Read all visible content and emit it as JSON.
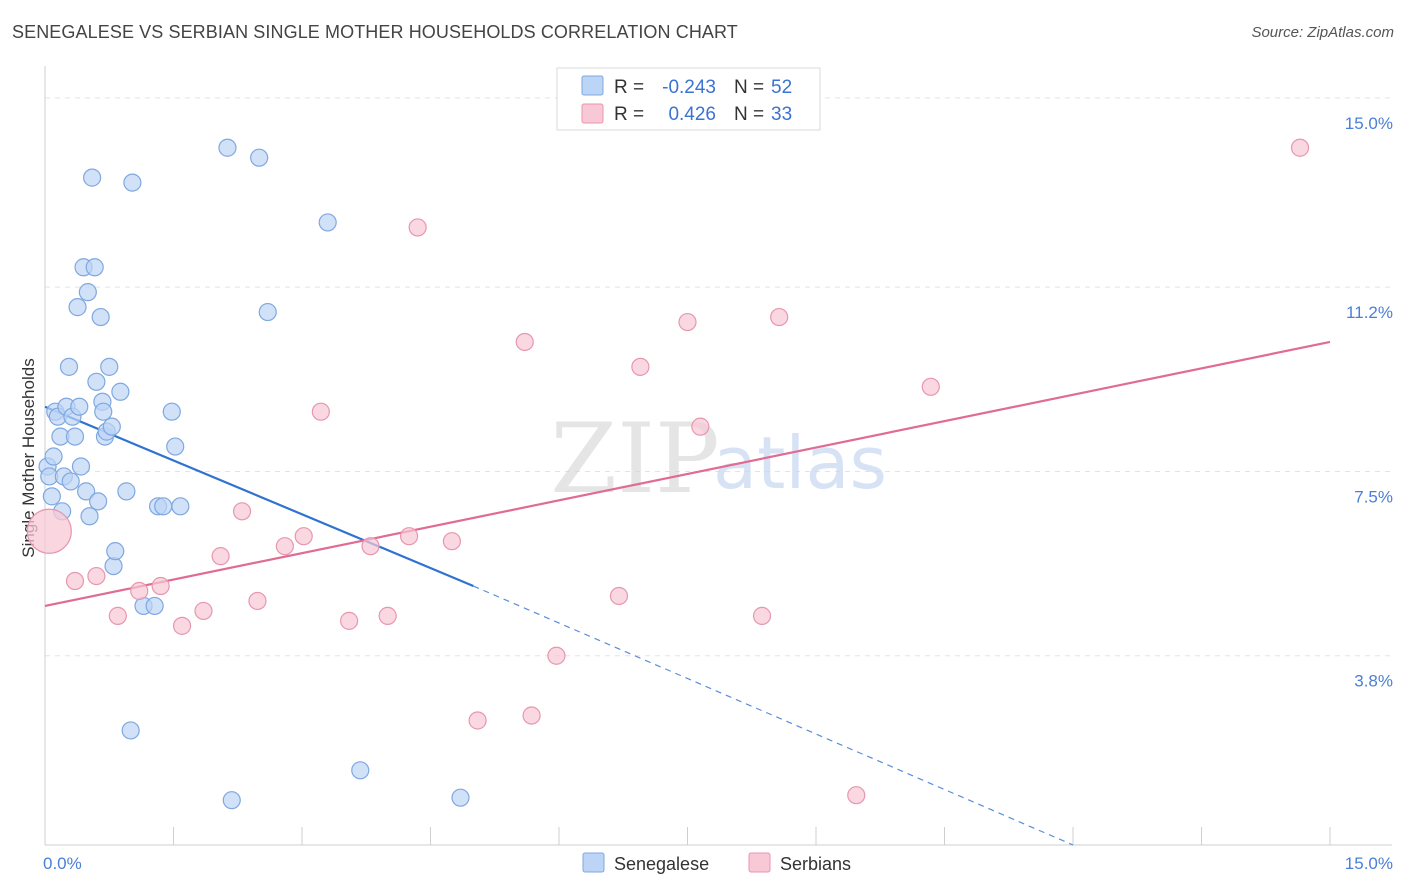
{
  "title": "SENEGALESE VS SERBIAN SINGLE MOTHER HOUSEHOLDS CORRELATION CHART",
  "source": "Source: ZipAtlas.com",
  "watermark": {
    "zip": "ZIP",
    "atlas": "atlas"
  },
  "colors": {
    "senegalese_fill": "#bcd4f5",
    "senegalese_stroke": "#7fa8e0",
    "senegalese_line": "#2f72d0",
    "serbian_fill": "#f8c8d6",
    "serbian_stroke": "#e896b0",
    "serbian_line": "#e06b93",
    "tick_text": "#4a7fd6",
    "grid": "#e3e3e3"
  },
  "legend": {
    "rows": [
      {
        "r_label": "R =",
        "r_value": "-0.243",
        "n_label": "N =",
        "n_value": "52"
      },
      {
        "r_label": "R =",
        "r_value": "0.426",
        "n_label": "N =",
        "n_value": "33"
      }
    ]
  },
  "chart_data": {
    "type": "scatter",
    "title": "SENEGALESE VS SERBIAN SINGLE MOTHER HOUSEHOLDS CORRELATION CHART",
    "xlabel": "",
    "ylabel": "Single Mother Households",
    "xlim": [
      0,
      15
    ],
    "ylim": [
      0,
      15.4
    ],
    "x_tick_labels": [
      "0.0%",
      "15.0%"
    ],
    "y_ticks": [
      3.8,
      7.5,
      11.2,
      15.0
    ],
    "y_tick_labels": [
      "3.8%",
      "7.5%",
      "11.2%",
      "15.0%"
    ],
    "grid": "horizontal dashed",
    "legend_position": "top-center",
    "series": [
      {
        "name": "Senegalese",
        "points": [
          [
            0.03,
            7.6
          ],
          [
            0.05,
            7.4
          ],
          [
            0.08,
            7.0
          ],
          [
            0.1,
            7.8
          ],
          [
            0.12,
            8.7
          ],
          [
            0.15,
            8.6
          ],
          [
            0.18,
            8.2
          ],
          [
            0.2,
            6.7
          ],
          [
            0.22,
            7.4
          ],
          [
            0.25,
            8.8
          ],
          [
            0.28,
            9.6
          ],
          [
            0.3,
            7.3
          ],
          [
            0.32,
            8.6
          ],
          [
            0.35,
            8.2
          ],
          [
            0.38,
            10.8
          ],
          [
            0.4,
            8.8
          ],
          [
            0.42,
            7.6
          ],
          [
            0.45,
            11.6
          ],
          [
            0.48,
            7.1
          ],
          [
            0.5,
            11.1
          ],
          [
            0.52,
            6.6
          ],
          [
            0.55,
            13.4
          ],
          [
            0.58,
            11.6
          ],
          [
            0.6,
            9.3
          ],
          [
            0.62,
            6.9
          ],
          [
            0.65,
            10.6
          ],
          [
            0.67,
            8.9
          ],
          [
            0.68,
            8.7
          ],
          [
            0.7,
            8.2
          ],
          [
            0.72,
            8.3
          ],
          [
            0.75,
            9.6
          ],
          [
            0.78,
            8.4
          ],
          [
            0.8,
            5.6
          ],
          [
            0.82,
            5.9
          ],
          [
            0.88,
            9.1
          ],
          [
            0.95,
            7.1
          ],
          [
            1.0,
            2.3
          ],
          [
            1.02,
            13.3
          ],
          [
            1.15,
            4.8
          ],
          [
            1.28,
            4.8
          ],
          [
            1.32,
            6.8
          ],
          [
            1.38,
            6.8
          ],
          [
            1.48,
            8.7
          ],
          [
            1.52,
            8.0
          ],
          [
            1.58,
            6.8
          ],
          [
            2.13,
            14.0
          ],
          [
            2.18,
            0.9
          ],
          [
            2.5,
            13.8
          ],
          [
            2.6,
            10.7
          ],
          [
            3.3,
            12.5
          ],
          [
            3.68,
            1.5
          ],
          [
            4.85,
            0.95
          ]
        ],
        "trend": {
          "x": [
            0.0,
            5.0
          ],
          "y": [
            8.8,
            5.2
          ]
        },
        "trend_extension": {
          "x": [
            5.0,
            12.0
          ],
          "y": [
            5.2,
            0.0
          ]
        }
      },
      {
        "name": "Serbians",
        "points": [
          [
            0.05,
            6.3
          ],
          [
            0.35,
            5.3
          ],
          [
            0.6,
            5.4
          ],
          [
            0.85,
            4.6
          ],
          [
            1.1,
            5.1
          ],
          [
            1.35,
            5.2
          ],
          [
            1.6,
            4.4
          ],
          [
            1.85,
            4.7
          ],
          [
            2.05,
            5.8
          ],
          [
            2.3,
            6.7
          ],
          [
            2.48,
            4.9
          ],
          [
            2.8,
            6.0
          ],
          [
            3.02,
            6.2
          ],
          [
            3.22,
            8.7
          ],
          [
            3.55,
            4.5
          ],
          [
            3.8,
            6.0
          ],
          [
            4.0,
            4.6
          ],
          [
            4.25,
            6.2
          ],
          [
            4.35,
            12.4
          ],
          [
            4.75,
            6.1
          ],
          [
            5.05,
            2.5
          ],
          [
            5.6,
            10.1
          ],
          [
            5.68,
            2.6
          ],
          [
            5.97,
            3.8
          ],
          [
            6.7,
            5.0
          ],
          [
            6.95,
            9.6
          ],
          [
            7.5,
            10.5
          ],
          [
            7.65,
            8.4
          ],
          [
            8.37,
            4.6
          ],
          [
            8.57,
            10.6
          ],
          [
            9.47,
            1.0
          ],
          [
            10.34,
            9.2
          ],
          [
            14.65,
            14.0
          ]
        ],
        "trend": {
          "x": [
            0.0,
            15.0
          ],
          "y": [
            4.8,
            10.1
          ]
        }
      }
    ]
  }
}
